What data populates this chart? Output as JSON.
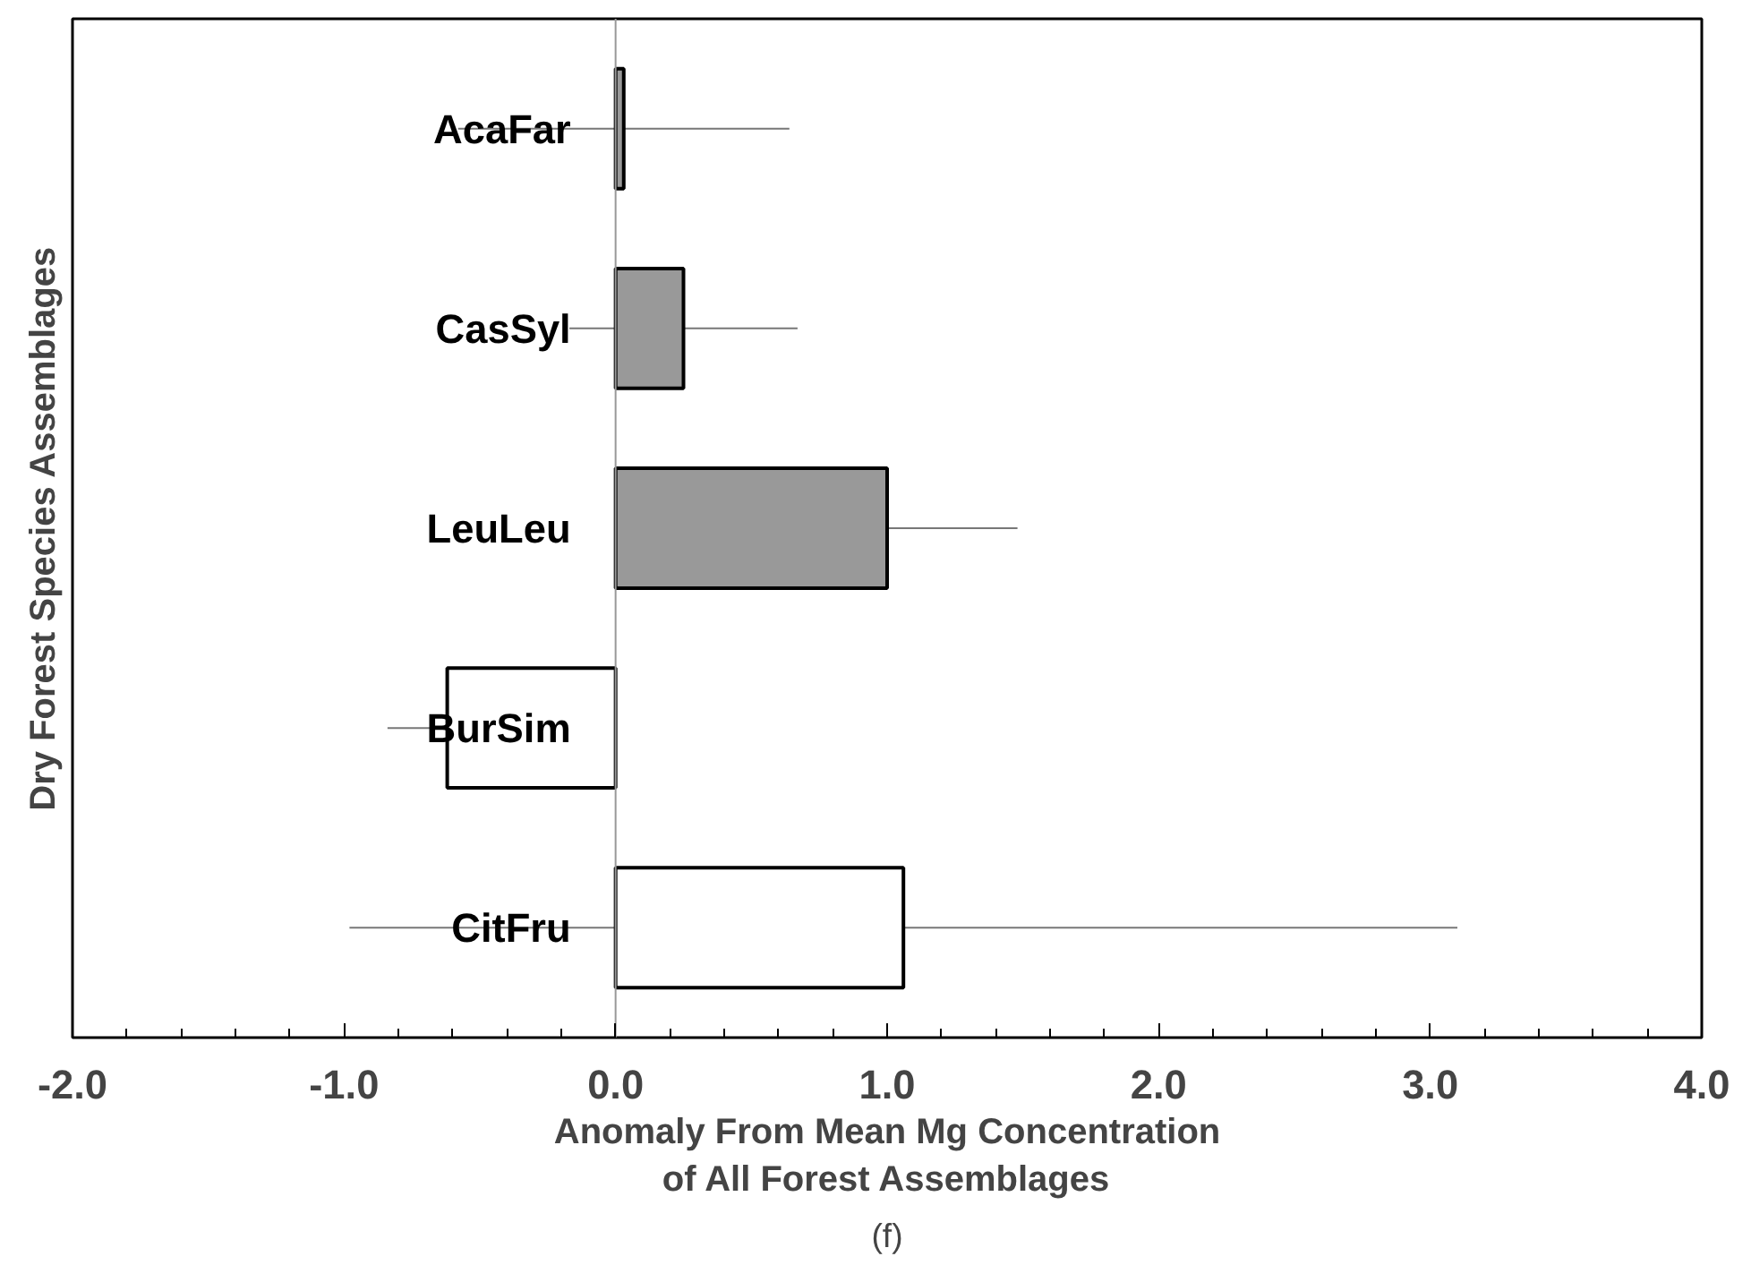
{
  "chart_data": {
    "type": "bar",
    "orientation": "horizontal",
    "categories": [
      "AcaFar",
      "CasSyl",
      "LeuLeu",
      "BurSim",
      "CitFru"
    ],
    "values": [
      0.03,
      0.25,
      1.0,
      -0.62,
      1.06
    ],
    "colors": [
      "#999999",
      "#999999",
      "#999999",
      "#ffffff",
      "#ffffff"
    ],
    "errors": [
      0.61,
      0.42,
      0.48,
      0.22,
      2.04
    ],
    "xlim": [
      -2,
      4
    ],
    "xticks": [
      {
        "value": -2,
        "label": "-2.0"
      },
      {
        "value": -1,
        "label": "-1.0"
      },
      {
        "value": 0,
        "label": "0.0"
      },
      {
        "value": 1,
        "label": "1.0"
      },
      {
        "value": 2,
        "label": "2.0"
      },
      {
        "value": 3,
        "label": "3.0"
      },
      {
        "value": 4,
        "label": "4.0"
      }
    ],
    "xlabel": "Anomaly From Mean Mg Concentration\nof All Forest Assemblages",
    "ylabel": "Dry Forest Species Assemblages",
    "annotations": [
      "(f)"
    ],
    "grid": false
  }
}
